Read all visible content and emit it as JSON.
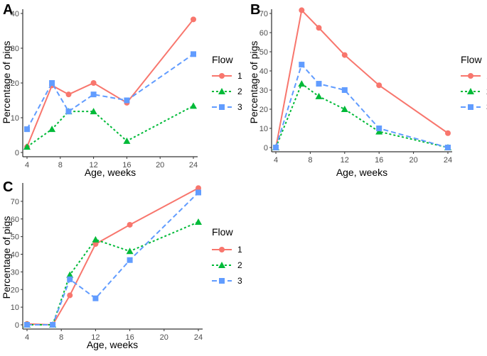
{
  "legend_title": "Flow",
  "series_styles": [
    {
      "name": "1",
      "color": "#F8766D",
      "dash": "solid",
      "marker": "circle"
    },
    {
      "name": "2",
      "color": "#00BA38",
      "dash": "dotted",
      "marker": "triangle"
    },
    {
      "name": "3",
      "color": "#619CFF",
      "dash": "dashed",
      "marker": "square"
    }
  ],
  "chart_data": [
    {
      "panel": "A",
      "type": "line",
      "xlabel": "Age, weeks",
      "ylabel": "Percentage of pigs",
      "xlim": [
        4,
        24
      ],
      "ylim": [
        0,
        40
      ],
      "xticks": [
        4,
        8,
        12,
        16,
        20,
        24
      ],
      "yticks": [
        0,
        10,
        20,
        30,
        40
      ],
      "x": [
        4,
        7,
        9,
        12,
        16,
        24
      ],
      "series": [
        {
          "name": "1",
          "values": [
            1.6,
            19.3,
            16.7,
            20.0,
            14.3,
            38.3
          ]
        },
        {
          "name": "2",
          "values": [
            1.6,
            6.7,
            11.8,
            11.8,
            3.3,
            13.4
          ]
        },
        {
          "name": "3",
          "values": [
            6.7,
            20.0,
            11.8,
            16.7,
            15.0,
            28.3
          ]
        }
      ]
    },
    {
      "panel": "B",
      "type": "line",
      "xlabel": "Age, weeks",
      "ylabel": "Percentage of pigs",
      "xlim": [
        4,
        24
      ],
      "ylim": [
        0,
        70
      ],
      "xticks": [
        4,
        8,
        12,
        16,
        20,
        24
      ],
      "yticks": [
        0,
        10,
        20,
        30,
        40,
        50,
        60,
        70
      ],
      "x": [
        4,
        7,
        9,
        12,
        16,
        24
      ],
      "series": [
        {
          "name": "1",
          "values": [
            0,
            71.7,
            62.5,
            48.3,
            32.5,
            7.5
          ]
        },
        {
          "name": "2",
          "values": [
            0,
            33.3,
            26.7,
            20.0,
            8.3,
            0
          ]
        },
        {
          "name": "3",
          "values": [
            0,
            43.3,
            33.3,
            30.0,
            10.0,
            0
          ]
        }
      ]
    },
    {
      "panel": "C",
      "type": "line",
      "xlabel": "Age, weeks",
      "ylabel": "Percentage of pigs",
      "xlim": [
        4,
        24
      ],
      "ylim": [
        0,
        78
      ],
      "xticks": [
        4,
        8,
        12,
        16,
        20,
        24
      ],
      "yticks": [
        0,
        10,
        20,
        30,
        40,
        50,
        60,
        70
      ],
      "x": [
        4,
        7,
        9,
        12,
        16,
        24
      ],
      "series": [
        {
          "name": "1",
          "values": [
            0.5,
            0,
            16.7,
            45.8,
            56.7,
            77.5
          ]
        },
        {
          "name": "2",
          "values": [
            0,
            0,
            28.3,
            48.3,
            41.7,
            58.3
          ]
        },
        {
          "name": "3",
          "values": [
            0,
            0,
            25.8,
            15.0,
            36.7,
            75.0
          ]
        }
      ]
    }
  ]
}
